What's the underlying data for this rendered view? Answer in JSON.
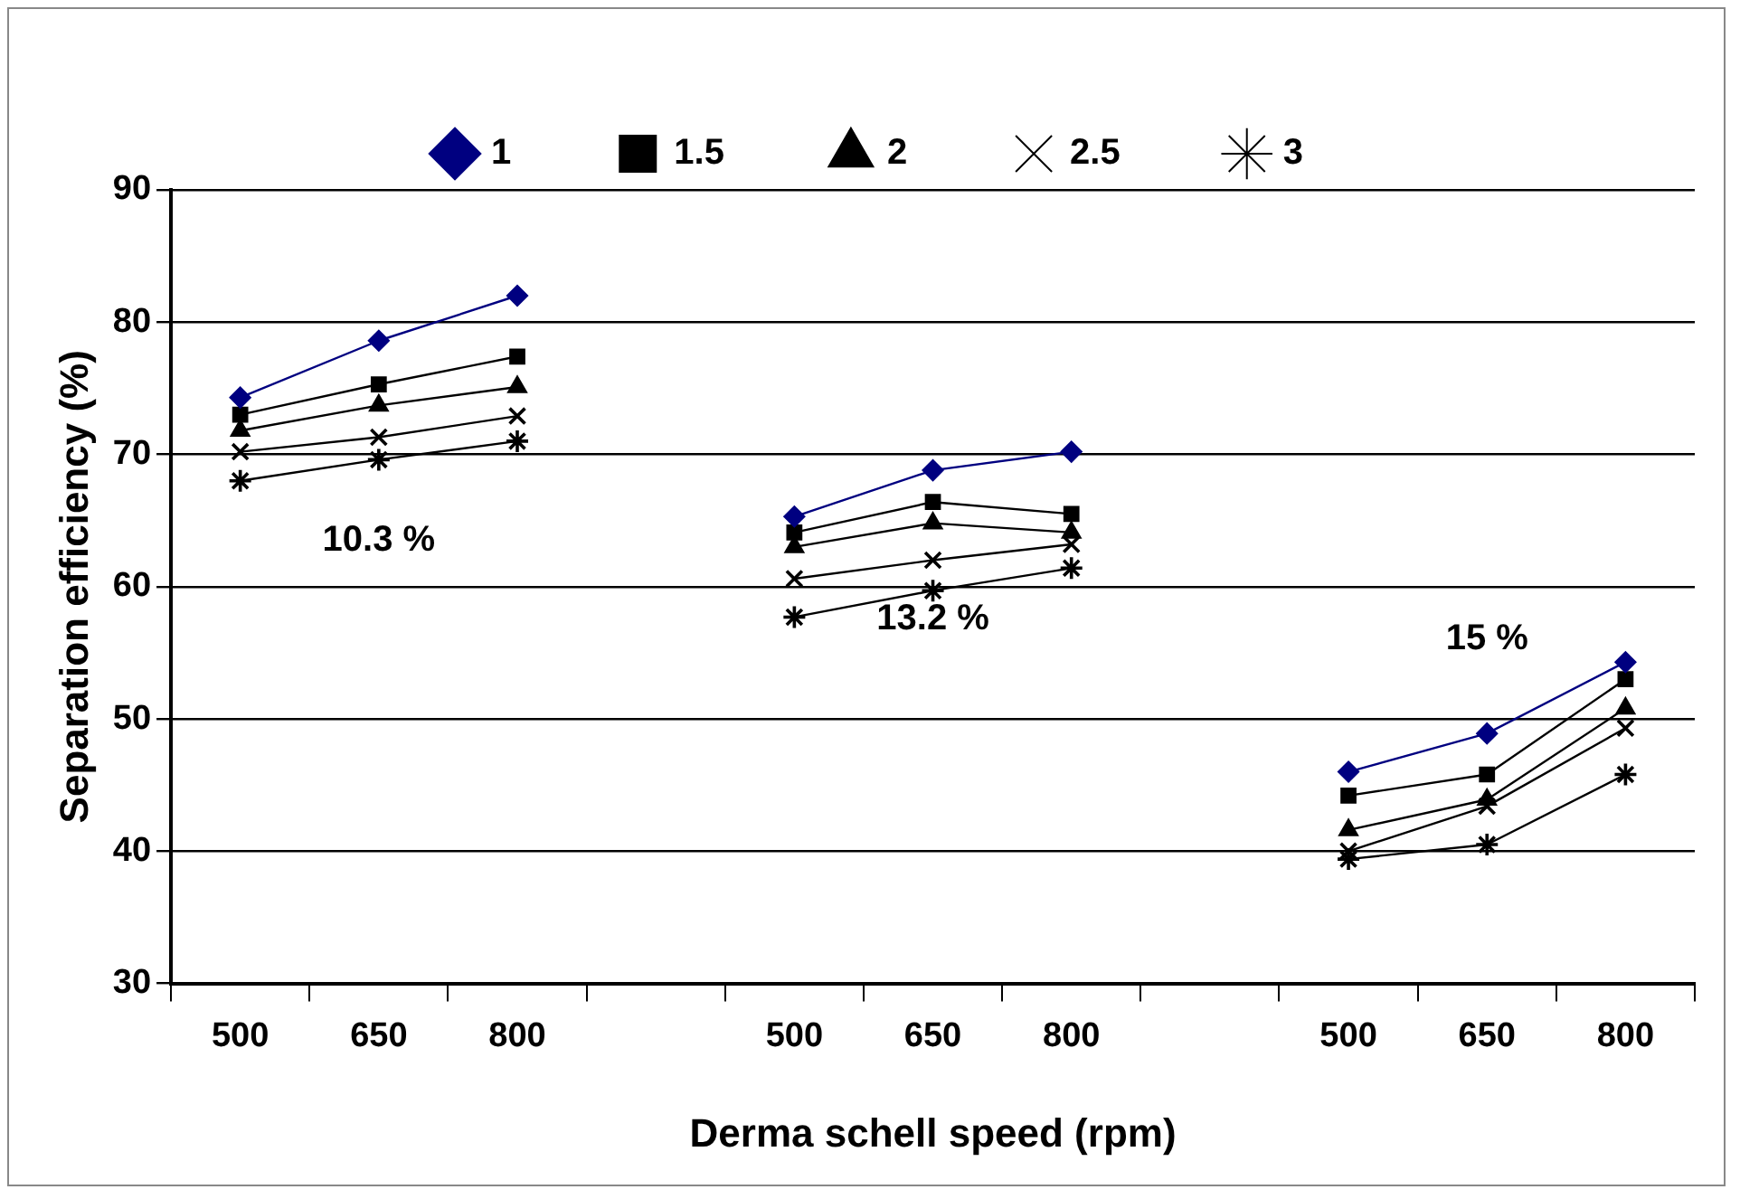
{
  "chart_data": {
    "type": "line",
    "xlabel": "Derma schell speed (rpm)",
    "ylabel": "Separation efficiency (%)",
    "categories": [
      "500",
      "650",
      "800",
      null,
      "500",
      "650",
      "800",
      null,
      "500",
      "650",
      "800"
    ],
    "series": [
      {
        "name": "1",
        "color": "#000080",
        "marker": "diamond",
        "values": [
          74.3,
          78.6,
          82.0,
          null,
          65.3,
          68.8,
          70.2,
          null,
          46.0,
          48.9,
          54.3
        ]
      },
      {
        "name": "1.5",
        "color": "#000000",
        "marker": "square",
        "values": [
          73.0,
          75.3,
          77.4,
          null,
          64.1,
          66.4,
          65.5,
          null,
          44.2,
          45.8,
          53.0
        ]
      },
      {
        "name": "2",
        "color": "#000000",
        "marker": "triangle",
        "values": [
          71.8,
          73.7,
          75.1,
          null,
          63.0,
          64.8,
          64.1,
          null,
          41.6,
          43.9,
          50.8
        ]
      },
      {
        "name": "2.5",
        "color": "#000000",
        "marker": "cross",
        "values": [
          70.2,
          71.3,
          72.9,
          null,
          60.6,
          62.0,
          63.2,
          null,
          40.0,
          43.4,
          49.3
        ]
      },
      {
        "name": "3",
        "color": "#000000",
        "marker": "star",
        "values": [
          68.0,
          69.6,
          71.0,
          null,
          57.7,
          59.7,
          61.4,
          null,
          39.4,
          40.5,
          45.8
        ]
      }
    ],
    "ylim": [
      30,
      90
    ],
    "yticks": [
      30,
      40,
      50,
      60,
      70,
      80,
      90
    ],
    "grid": "y",
    "legend": "top",
    "line_style": "solid",
    "annotations": [
      "10.3 %",
      "13.2 %",
      "15 %"
    ]
  }
}
